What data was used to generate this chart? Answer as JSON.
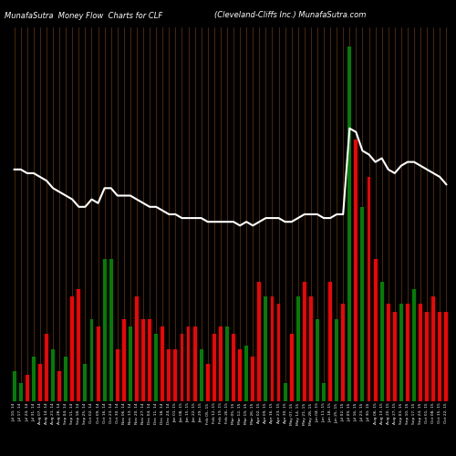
{
  "title_left": "MunafaSutra  Money Flow  Charts for CLF",
  "title_right": "(Cleveland-Cliffs Inc.) MunafaSutra.com",
  "background_color": "#000000",
  "bar_values": [
    8,
    5,
    7,
    12,
    10,
    18,
    14,
    8,
    12,
    28,
    30,
    10,
    22,
    20,
    38,
    38,
    14,
    22,
    20,
    28,
    22,
    22,
    18,
    20,
    14,
    14,
    18,
    20,
    20,
    14,
    10,
    18,
    20,
    20,
    18,
    14,
    15,
    12,
    32,
    28,
    28,
    26,
    5,
    18,
    28,
    32,
    28,
    22,
    5,
    32,
    22,
    26,
    95,
    70,
    52,
    60,
    38,
    32,
    26,
    24,
    26,
    26,
    30,
    26,
    24,
    28,
    24,
    24
  ],
  "bar_colors": [
    "green",
    "green",
    "red",
    "green",
    "red",
    "red",
    "green",
    "red",
    "green",
    "red",
    "red",
    "green",
    "green",
    "red",
    "green",
    "green",
    "red",
    "red",
    "green",
    "red",
    "red",
    "red",
    "green",
    "red",
    "red",
    "red",
    "red",
    "red",
    "red",
    "green",
    "red",
    "red",
    "red",
    "green",
    "red",
    "red",
    "green",
    "red",
    "red",
    "green",
    "red",
    "red",
    "green",
    "red",
    "green",
    "red",
    "red",
    "green",
    "green",
    "red",
    "green",
    "red",
    "green",
    "red",
    "green",
    "red",
    "red",
    "green",
    "red",
    "red",
    "green",
    "red",
    "green",
    "red",
    "red",
    "red",
    "red",
    "red"
  ],
  "line_values": [
    62,
    62,
    61,
    61,
    60,
    59,
    57,
    56,
    55,
    54,
    52,
    52,
    54,
    53,
    57,
    57,
    55,
    55,
    55,
    54,
    53,
    52,
    52,
    51,
    50,
    50,
    49,
    49,
    49,
    49,
    48,
    48,
    48,
    48,
    48,
    47,
    48,
    47,
    48,
    49,
    49,
    49,
    48,
    48,
    49,
    50,
    50,
    50,
    49,
    49,
    50,
    50,
    73,
    72,
    67,
    66,
    64,
    65,
    62,
    61,
    63,
    64,
    64,
    63,
    62,
    61,
    60,
    58
  ],
  "tick_labels": [
    "Jul 10, 14",
    "Jul 17, 14",
    "Jul 24, 14",
    "Jul 31, 14",
    "Aug 07, 14",
    "Aug 14, 14",
    "Aug 21, 14",
    "Aug 28, 14",
    "Sep 04, 14",
    "Sep 11, 14",
    "Sep 18, 14",
    "Sep 25, 14",
    "Oct 02, 14",
    "Oct 09, 14",
    "Oct 16, 14",
    "Oct 23, 14",
    "Oct 30, 14",
    "Nov 06, 14",
    "Nov 13, 14",
    "Nov 20, 14",
    "Nov 27, 14",
    "Dec 04, 14",
    "Dec 11, 14",
    "Dec 18, 14",
    "Dec 24, 14",
    "Jan 01, 15",
    "Jan 08, 15",
    "Jan 15, 15",
    "Jan 22, 15",
    "Jan 29, 15",
    "Feb 05, 15",
    "Feb 12, 15",
    "Feb 19, 15",
    "Feb 26, 15",
    "Mar 05, 15",
    "Mar 12, 15",
    "Mar 19, 15",
    "Mar 26, 15",
    "Apr 02, 15",
    "Apr 09, 15",
    "Apr 16, 15",
    "Apr 23, 15",
    "Apr 30, 15",
    "May 07, 15",
    "May 14, 15",
    "May 21, 15",
    "May 28, 15",
    "Jun 04, 15",
    "Jun 11, 15",
    "Jun 18, 15",
    "Jun 25, 15",
    "Jul 02, 15",
    "Jul 09, 15",
    "Jul 16, 15",
    "Jul 23, 15",
    "Jul 30, 15",
    "Aug 06, 15",
    "Aug 13, 15",
    "Aug 20, 15",
    "Aug 27, 15",
    "Sep 03, 15",
    "Sep 10, 15",
    "Sep 17, 15",
    "Sep 24, 15",
    "Oct 01, 15",
    "Oct 08, 15",
    "Oct 15, 15",
    "Oct 22, 15"
  ],
  "orange_line_color": "#8B4500",
  "line_color": "#ffffff",
  "ylim_max": 100
}
